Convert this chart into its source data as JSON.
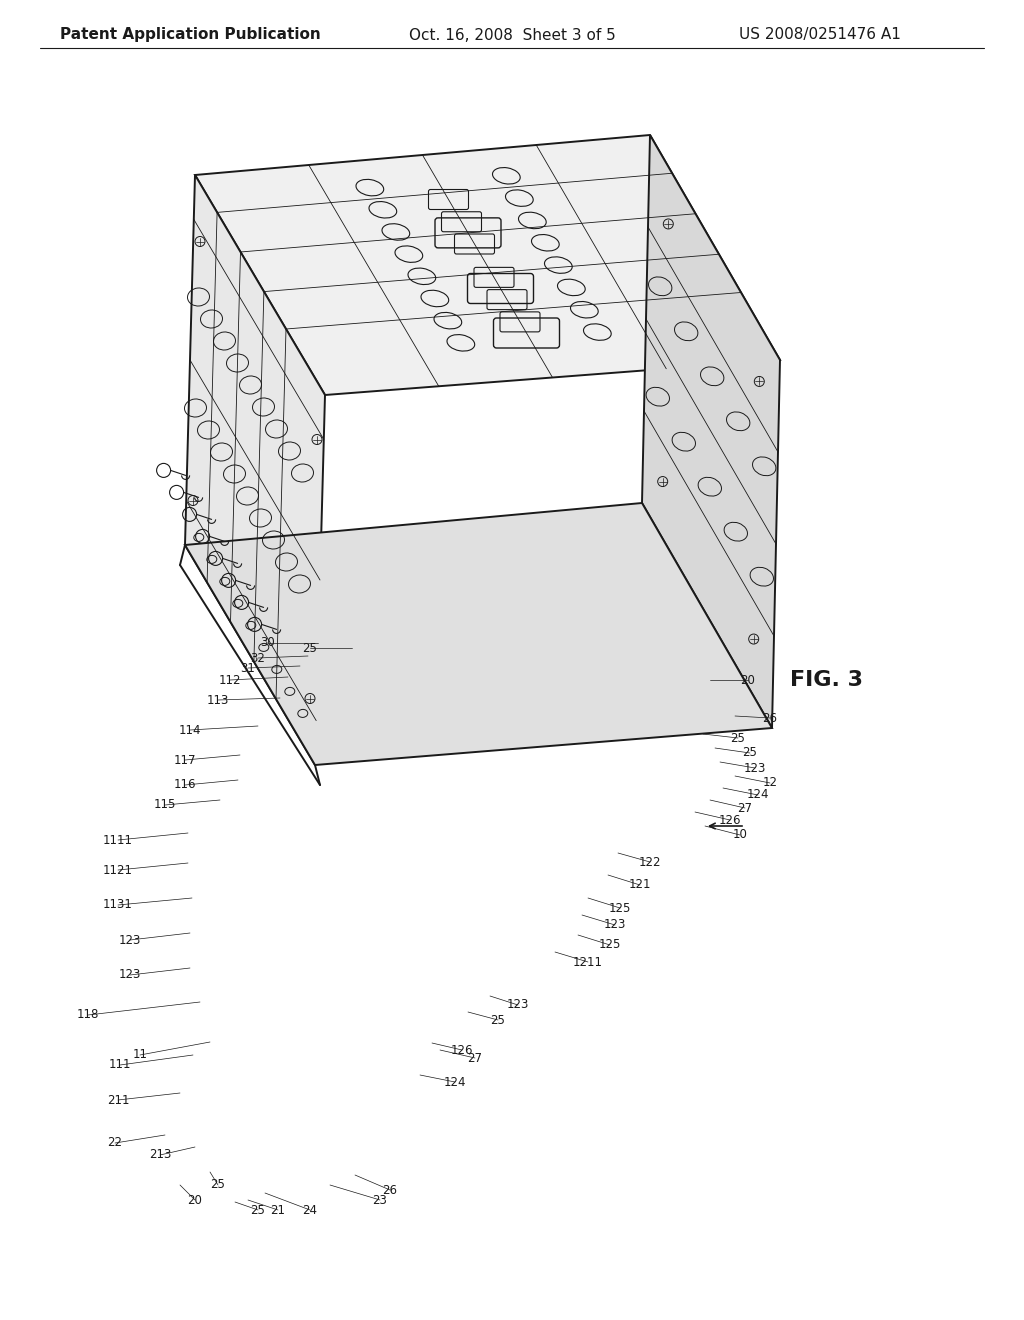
{
  "background_color": "#ffffff",
  "header_left": "Patent Application Publication",
  "header_center": "Oct. 16, 2008  Sheet 3 of 5",
  "header_right": "US 2008/0251476 A1",
  "fig_label": "FIG. 3",
  "title_fontsize": 11,
  "label_fontsize": 9.5
}
